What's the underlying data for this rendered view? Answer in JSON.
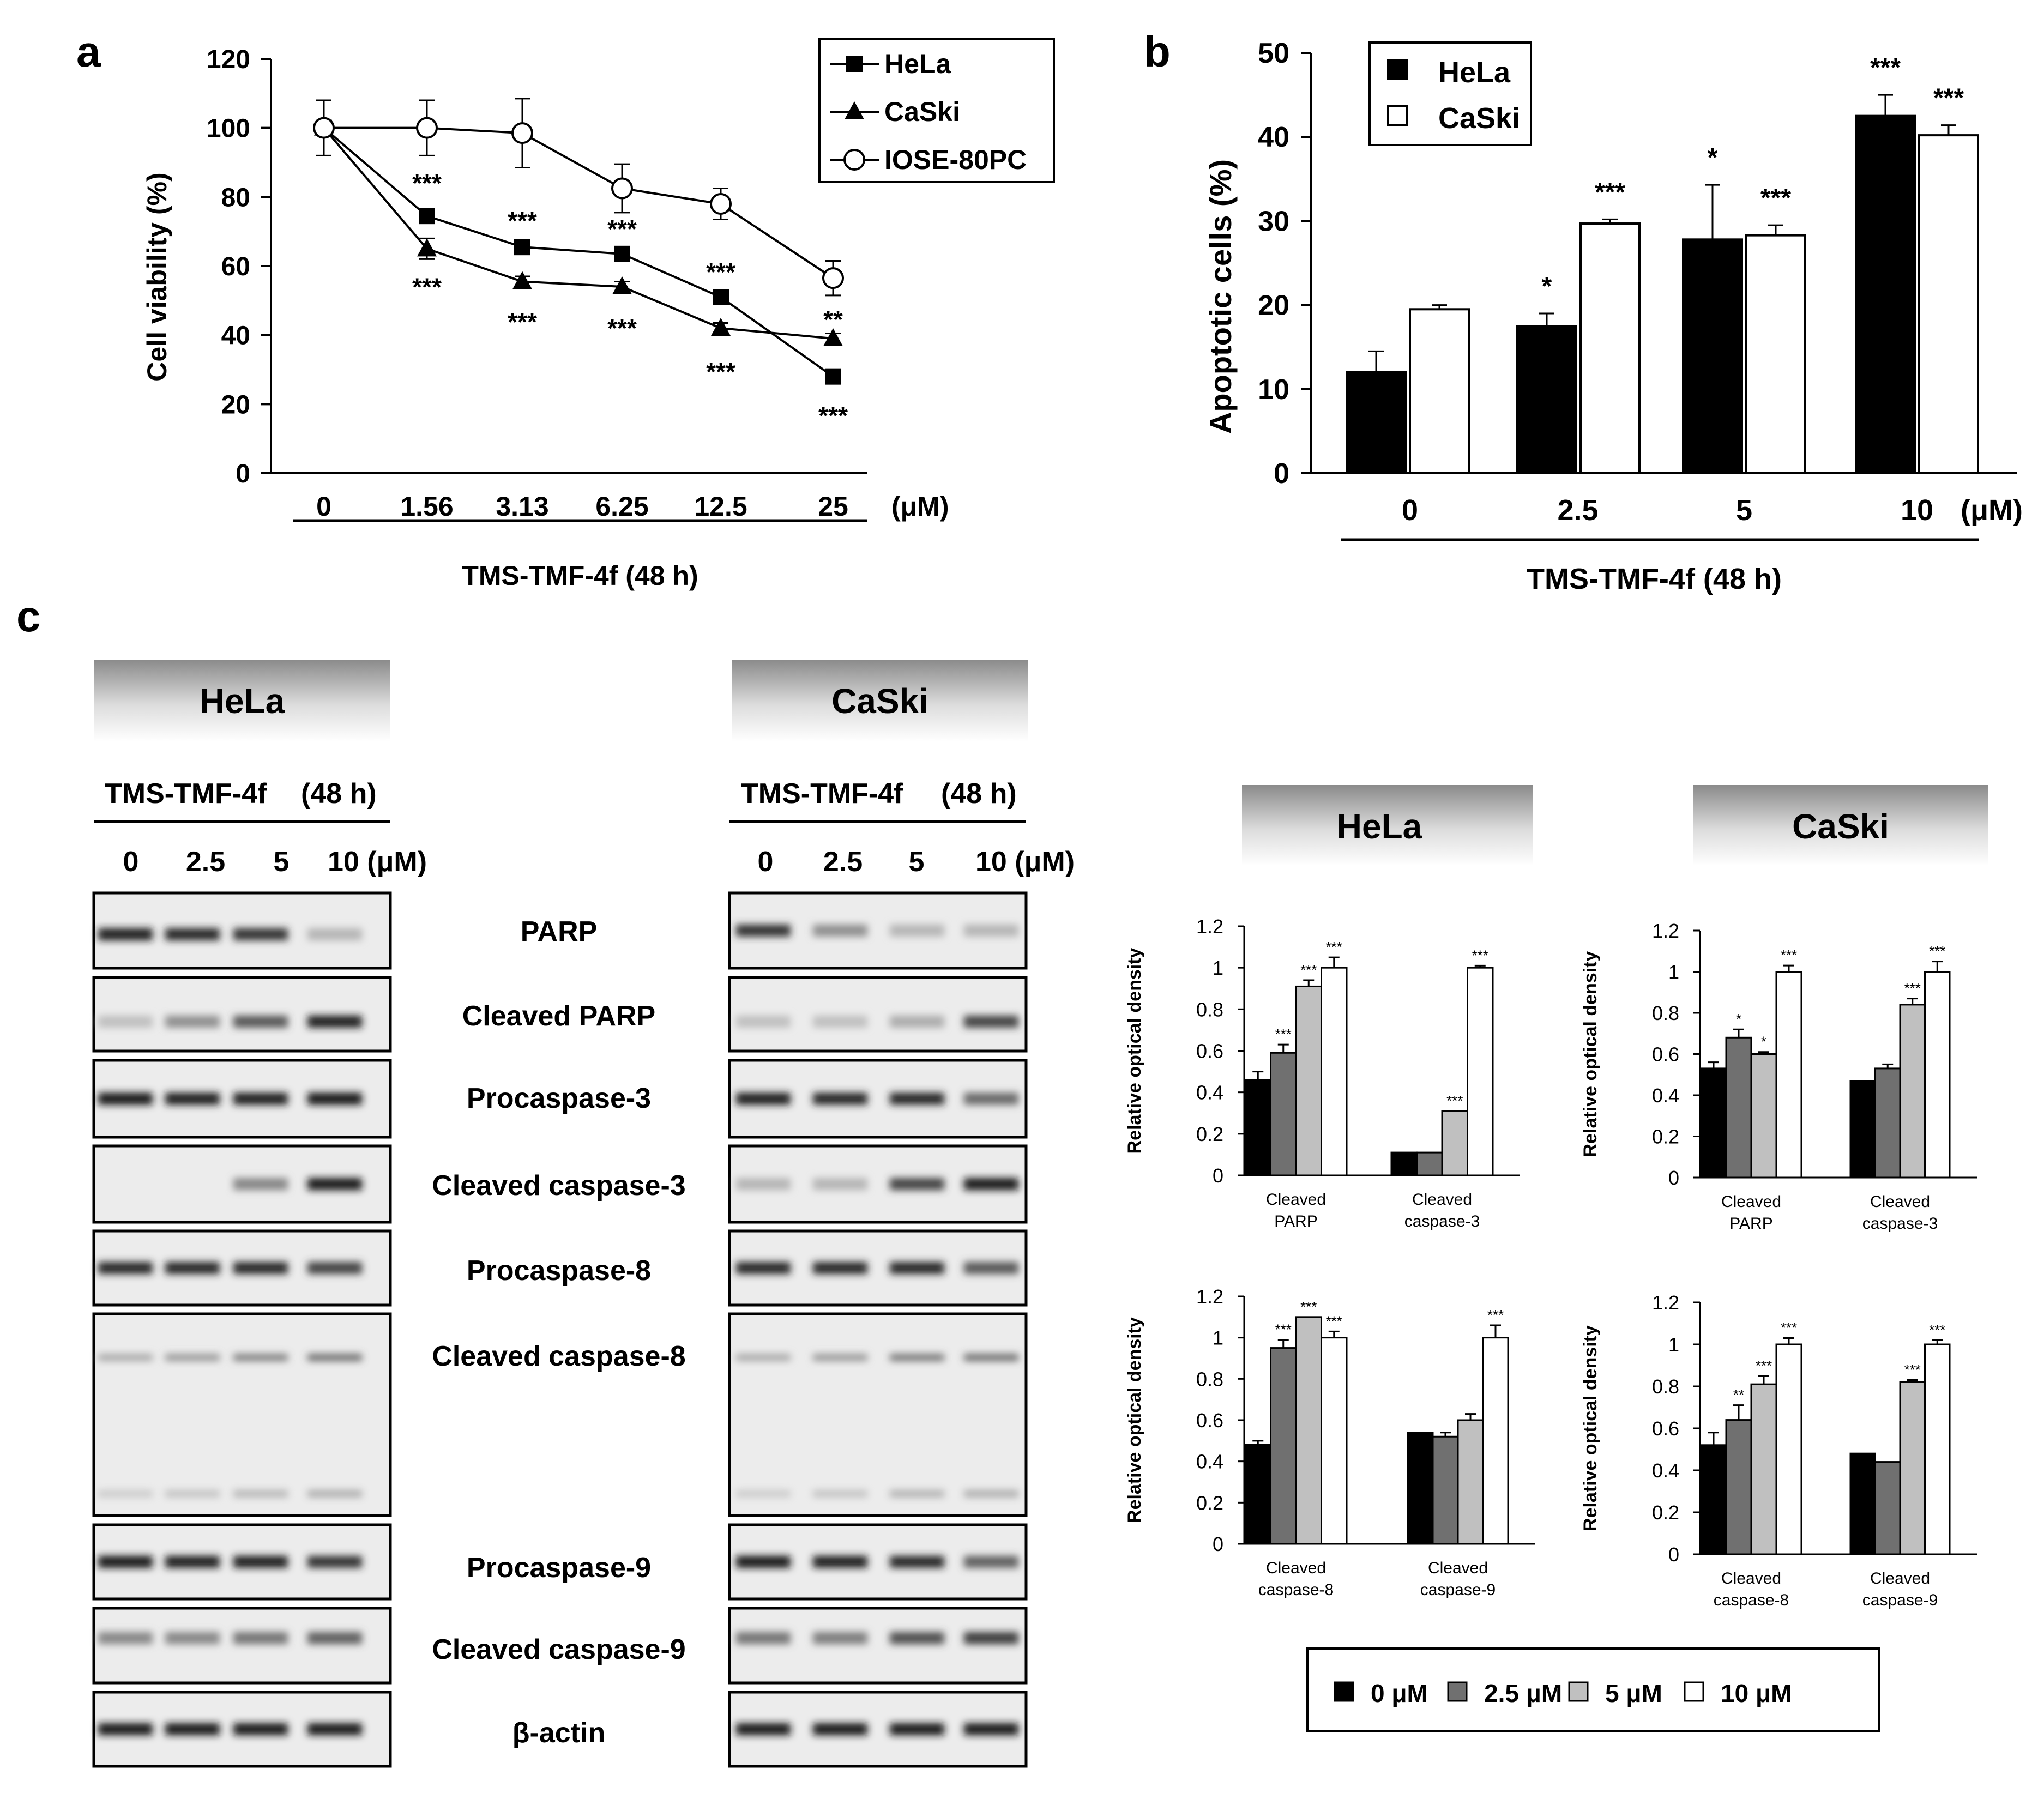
{
  "panel_labels": {
    "a": "a",
    "b": "b",
    "c": "c"
  },
  "treatment": {
    "name": "TMS-TMF-4f",
    "duration": "(48 h)",
    "unit": "(μM)"
  },
  "chart_data": [
    {
      "id": "viability",
      "type": "line",
      "ylabel": "Cell viability (%)",
      "xlabel": "TMS-TMF-4f  (48 h)",
      "x_unit": "(μM)",
      "categories": [
        "0",
        "1.56",
        "3.13",
        "6.25",
        "12.5",
        "25"
      ],
      "ylim": [
        0,
        120
      ],
      "yticks": [
        "0",
        "20",
        "40",
        "60",
        "80",
        "100",
        "120"
      ],
      "legend": {
        "placement": "top-right",
        "entries": [
          "HeLa",
          "CaSki",
          "IOSE-80PC"
        ]
      },
      "series": [
        {
          "name": "HeLa",
          "marker": "square",
          "values": [
            100,
            74.5,
            65.5,
            63.5,
            51,
            28
          ],
          "errors": [
            0,
            2,
            1.5,
            1.5,
            1.5,
            1.5
          ],
          "stars": [
            "",
            "***",
            "***",
            "***",
            "***",
            "***"
          ]
        },
        {
          "name": "CaSki",
          "marker": "triangle",
          "values": [
            100,
            65,
            55.5,
            54,
            42,
            39
          ],
          "errors": [
            0,
            3,
            1.5,
            1.5,
            1.5,
            1.5
          ],
          "stars": [
            "",
            "***",
            "***",
            "***",
            "***",
            ""
          ]
        },
        {
          "name": "IOSE-80PC",
          "marker": "circle",
          "values": [
            100,
            100,
            98.5,
            82.5,
            78,
            56.5
          ],
          "errors": [
            8,
            8,
            10,
            7,
            4.5,
            5
          ],
          "stars": [
            "",
            "",
            "",
            "",
            "",
            "**"
          ]
        }
      ]
    },
    {
      "id": "apoptosis",
      "type": "bar",
      "ylabel": "Apoptotic cells (%)",
      "xlabel": "TMS-TMF-4f  (48 h)",
      "x_unit": "(μM)",
      "categories": [
        "0",
        "2.5",
        "5",
        "10"
      ],
      "ylim": [
        0,
        50
      ],
      "yticks": [
        "0",
        "10",
        "20",
        "30",
        "40",
        "50"
      ],
      "legend": {
        "placement": "top-left",
        "entries": [
          "HeLa",
          "CaSki"
        ]
      },
      "series": [
        {
          "name": "HeLa",
          "color": "#000000",
          "values": [
            12,
            17.5,
            27.8,
            42.5
          ],
          "errors": [
            2.5,
            1.5,
            6.5,
            2.5
          ],
          "stars": [
            "",
            "*",
            "*",
            "***"
          ]
        },
        {
          "name": "CaSki",
          "color": "#ffffff",
          "values": [
            19.5,
            29.7,
            28.3,
            40.2
          ],
          "errors": [
            0.5,
            0.5,
            1.2,
            1.2
          ],
          "stars": [
            "",
            "***",
            "***",
            "***"
          ]
        }
      ]
    },
    {
      "id": "hela-top",
      "type": "bar",
      "ylabel": "Relative optical density",
      "categories": [
        "Cleaved\nPARP",
        "Cleaved\ncaspase-3"
      ],
      "ylim": [
        0,
        1.2
      ],
      "yticks": [
        "0",
        "0.2",
        "0.4",
        "0.6",
        "0.8",
        "1",
        "1.2"
      ],
      "series": [
        {
          "name": "0 μM",
          "values": [
            0.46,
            0.11
          ],
          "errors": [
            0.04,
            0.0
          ],
          "stars": [
            "",
            ""
          ]
        },
        {
          "name": "2.5 μM",
          "values": [
            0.59,
            0.11
          ],
          "errors": [
            0.04,
            0.0
          ],
          "stars": [
            "***",
            ""
          ]
        },
        {
          "name": "5 μM",
          "values": [
            0.91,
            0.31
          ],
          "errors": [
            0.03,
            0.0
          ],
          "stars": [
            "***",
            "***"
          ]
        },
        {
          "name": "10 μM",
          "values": [
            1.0,
            1.0
          ],
          "errors": [
            0.05,
            0.01
          ],
          "stars": [
            "***",
            "***"
          ]
        }
      ]
    },
    {
      "id": "caski-top",
      "type": "bar",
      "ylabel": "Relative optical density",
      "categories": [
        "Cleaved\nPARP",
        "Cleaved\ncaspase-3"
      ],
      "ylim": [
        0,
        1.2
      ],
      "yticks": [
        "0",
        "0.2",
        "0.4",
        "0.6",
        "0.8",
        "1",
        "1.2"
      ],
      "series": [
        {
          "name": "0 μM",
          "values": [
            0.53,
            0.47
          ],
          "errors": [
            0.03,
            0.0
          ],
          "stars": [
            "",
            ""
          ]
        },
        {
          "name": "2.5 μM",
          "values": [
            0.68,
            0.53
          ],
          "errors": [
            0.04,
            0.02
          ],
          "stars": [
            "*",
            ""
          ]
        },
        {
          "name": "5 μM",
          "values": [
            0.6,
            0.84
          ],
          "errors": [
            0.01,
            0.03
          ],
          "stars": [
            "*",
            "***"
          ]
        },
        {
          "name": "10 μM",
          "values": [
            1.0,
            1.0
          ],
          "errors": [
            0.03,
            0.05
          ],
          "stars": [
            "***",
            "***"
          ]
        }
      ]
    },
    {
      "id": "hela-bottom",
      "type": "bar",
      "ylabel": "Relative optical density",
      "categories": [
        "Cleaved\ncaspase-8",
        "Cleaved\ncaspase-9"
      ],
      "ylim": [
        0,
        1.2
      ],
      "yticks": [
        "0",
        "0.2",
        "0.4",
        "0.6",
        "0.8",
        "1",
        "1.2"
      ],
      "series": [
        {
          "name": "0 μM",
          "values": [
            0.48,
            0.54
          ],
          "errors": [
            0.02,
            0.0
          ],
          "stars": [
            "",
            ""
          ]
        },
        {
          "name": "2.5 μM",
          "values": [
            0.95,
            0.52
          ],
          "errors": [
            0.04,
            0.02
          ],
          "stars": [
            "***",
            ""
          ]
        },
        {
          "name": "5 μM",
          "values": [
            1.1,
            0.6
          ],
          "errors": [
            0.0,
            0.03
          ],
          "stars": [
            "***",
            ""
          ]
        },
        {
          "name": "10 μM",
          "values": [
            1.0,
            1.0
          ],
          "errors": [
            0.03,
            0.06
          ],
          "stars": [
            "***",
            "***"
          ]
        }
      ]
    },
    {
      "id": "caski-bottom",
      "type": "bar",
      "ylabel": "Relative optical density",
      "categories": [
        "Cleaved\ncaspase-8",
        "Cleaved\ncaspase-9"
      ],
      "ylim": [
        0,
        1.2
      ],
      "yticks": [
        "0",
        "0.2",
        "0.4",
        "0.6",
        "0.8",
        "1",
        "1.2"
      ],
      "series": [
        {
          "name": "0 μM",
          "values": [
            0.52,
            0.48
          ],
          "errors": [
            0.06,
            0.0
          ],
          "stars": [
            "",
            ""
          ]
        },
        {
          "name": "2.5 μM",
          "values": [
            0.64,
            0.44
          ],
          "errors": [
            0.07,
            0.0
          ],
          "stars": [
            "**",
            ""
          ]
        },
        {
          "name": "5 μM",
          "values": [
            0.81,
            0.82
          ],
          "errors": [
            0.04,
            0.01
          ],
          "stars": [
            "***",
            "***"
          ]
        },
        {
          "name": "10 μM",
          "values": [
            1.0,
            1.0
          ],
          "errors": [
            0.03,
            0.02
          ],
          "stars": [
            "***",
            "***"
          ]
        }
      ]
    }
  ],
  "density_legend": {
    "entries": [
      {
        "label": "0 μM",
        "color": "#000000"
      },
      {
        "label": "2.5 μM",
        "color": "#707070"
      },
      {
        "label": "5 μM",
        "color": "#c0c0c0"
      },
      {
        "label": "10 μM",
        "color": "#ffffff"
      }
    ]
  },
  "blot": {
    "headers": {
      "hela": "HeLa",
      "caski": "CaSki"
    },
    "concentrations": [
      "0",
      "2.5",
      "5",
      "10 (μM)"
    ],
    "proteins": [
      "PARP",
      "Cleaved PARP",
      "Procaspase-3",
      "Cleaved caspase-3",
      "Procaspase-8",
      "Cleaved caspase-8",
      "Procaspase-9",
      "Cleaved caspase-9",
      "β-actin"
    ]
  },
  "quant_headers": {
    "hela": "HeLa",
    "caski": "CaSki"
  }
}
